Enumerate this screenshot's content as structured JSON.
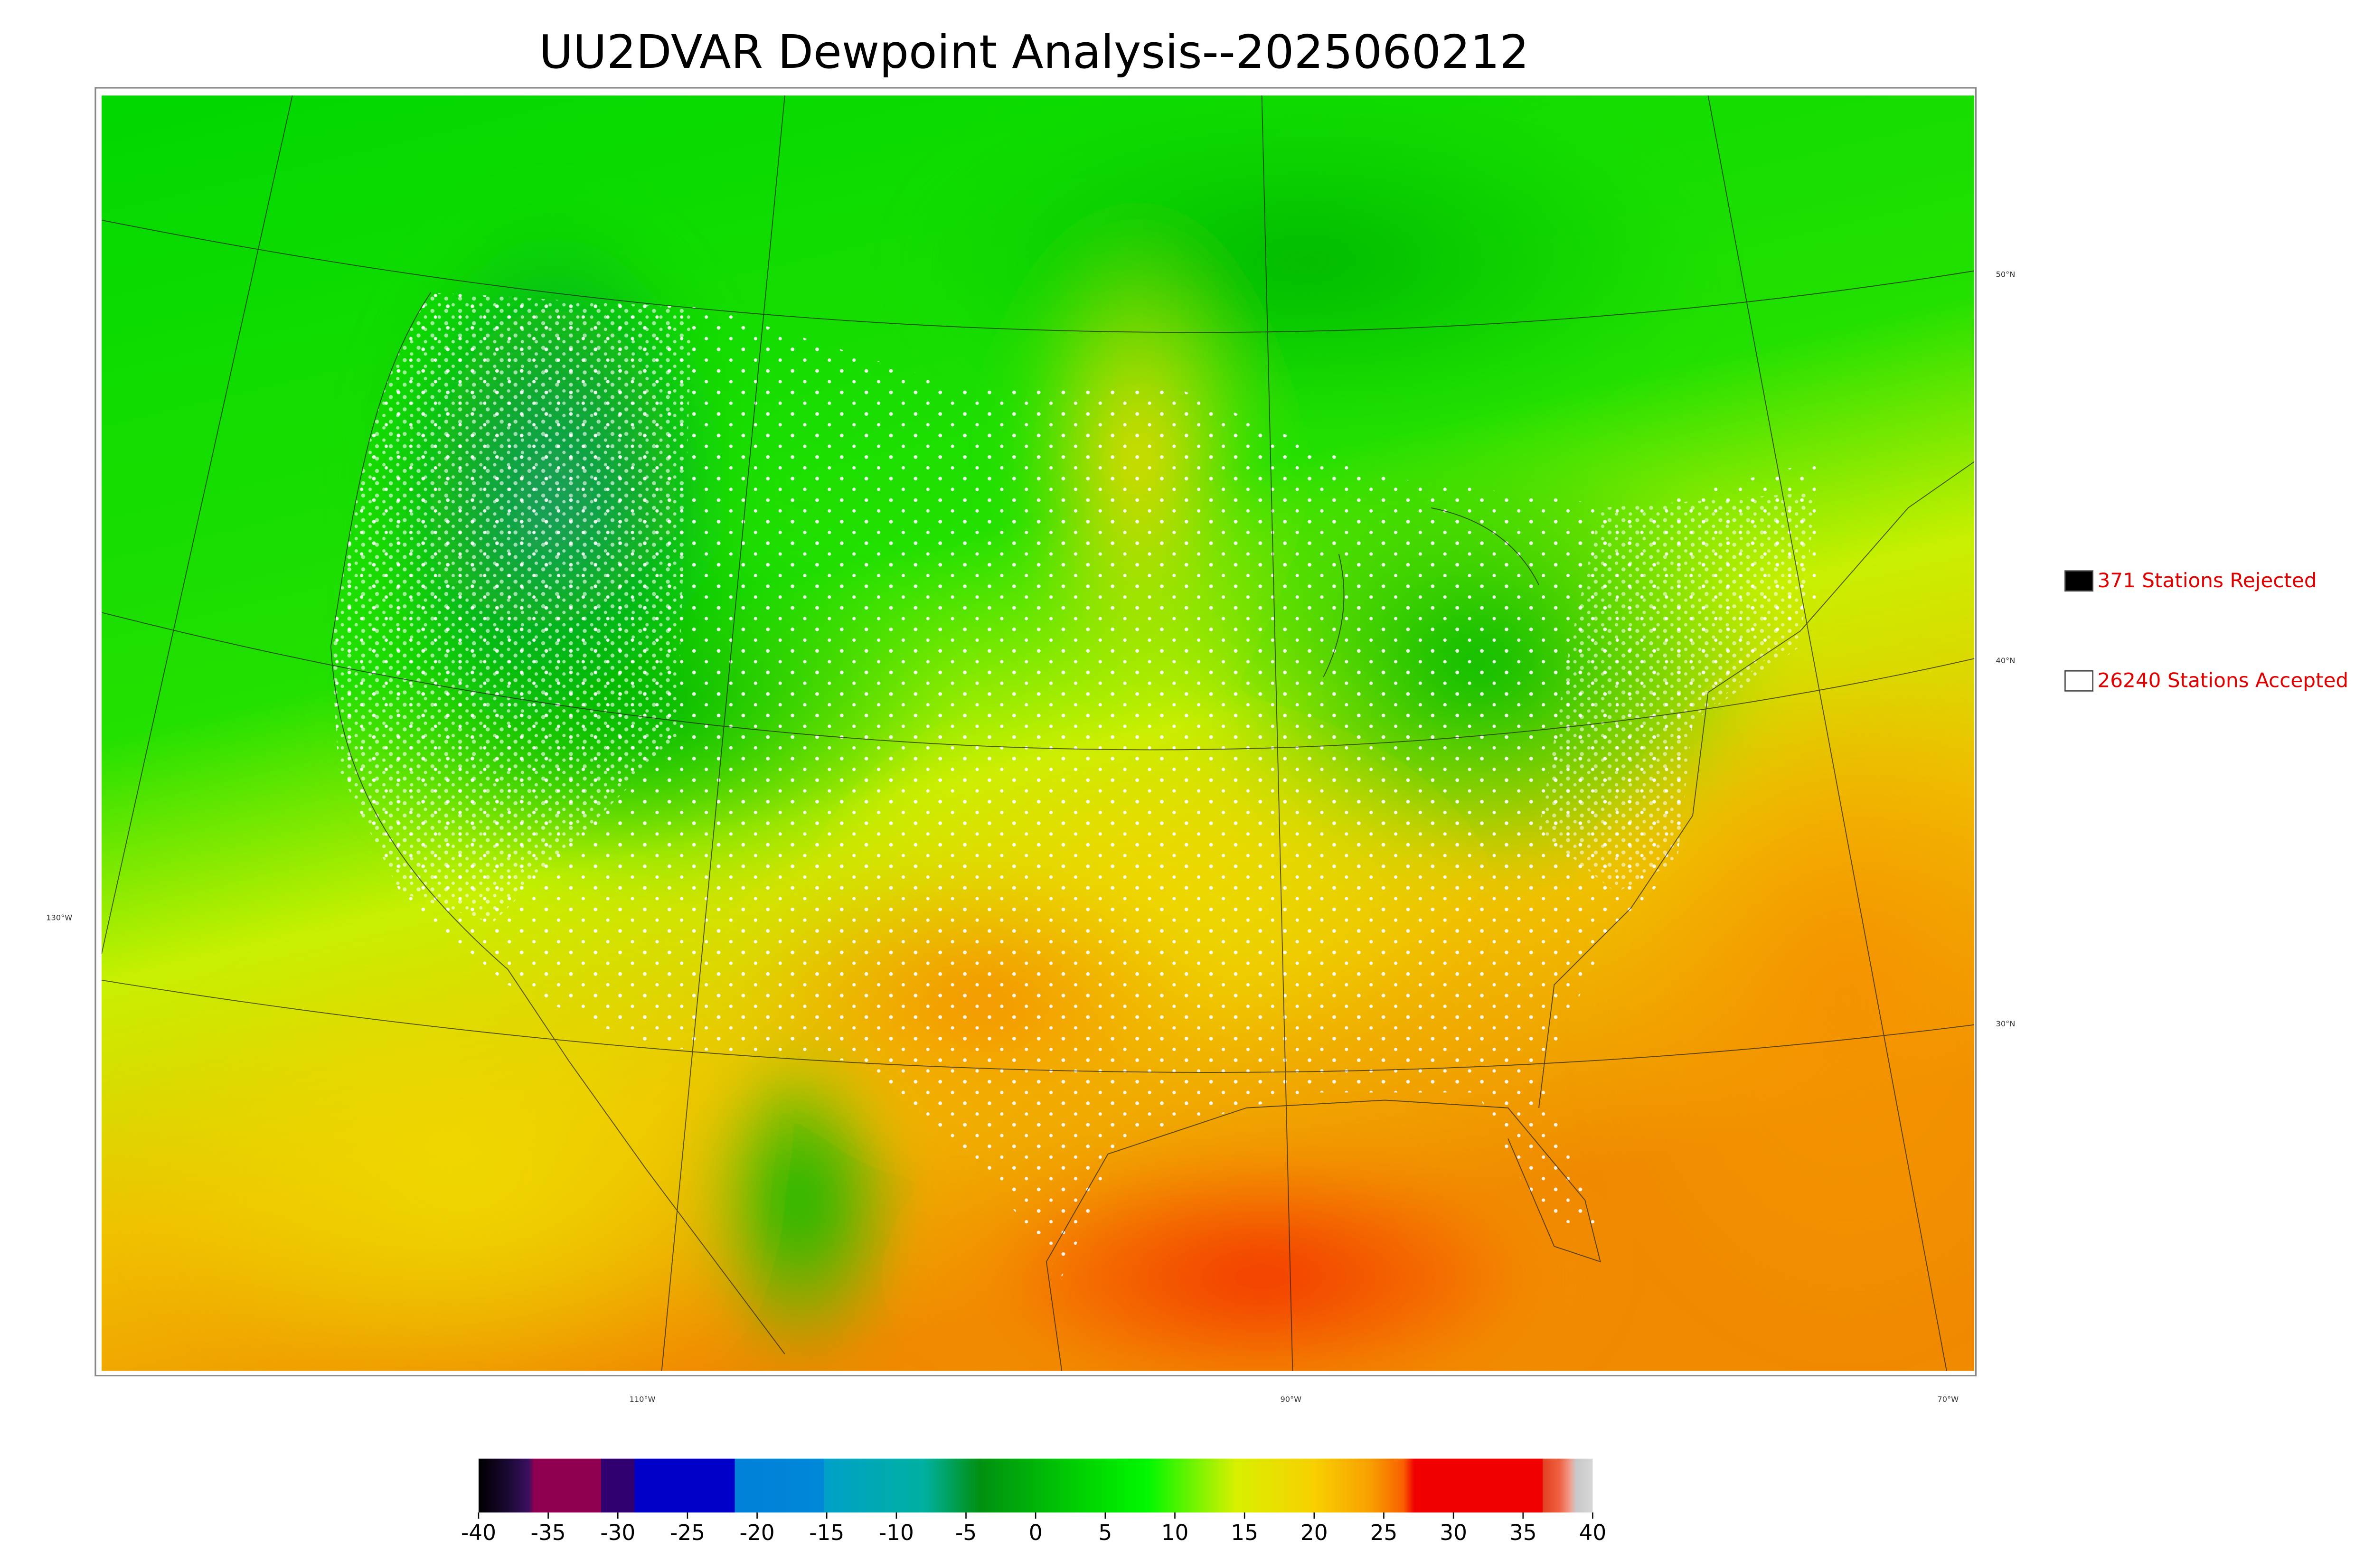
{
  "title": "UU2DVAR Dewpoint Analysis--2025060212",
  "legend": {
    "items": [
      {
        "label": "371 Stations Rejected",
        "color": "#000000"
      },
      {
        "label": "26240 Stations Accepted",
        "color": "#ffffff"
      }
    ]
  },
  "graticule": {
    "latitudes": [
      "50°N",
      "40°N",
      "30°N"
    ],
    "longitudes": [
      "130°W",
      "110°W",
      "90°W",
      "70°W"
    ]
  },
  "colorbar": {
    "clim": [
      -40,
      40
    ],
    "ticks": [
      -40,
      -35,
      -30,
      -25,
      -20,
      -15,
      -10,
      -5,
      0,
      5,
      10,
      15,
      20,
      25,
      30,
      35,
      40
    ]
  }
}
